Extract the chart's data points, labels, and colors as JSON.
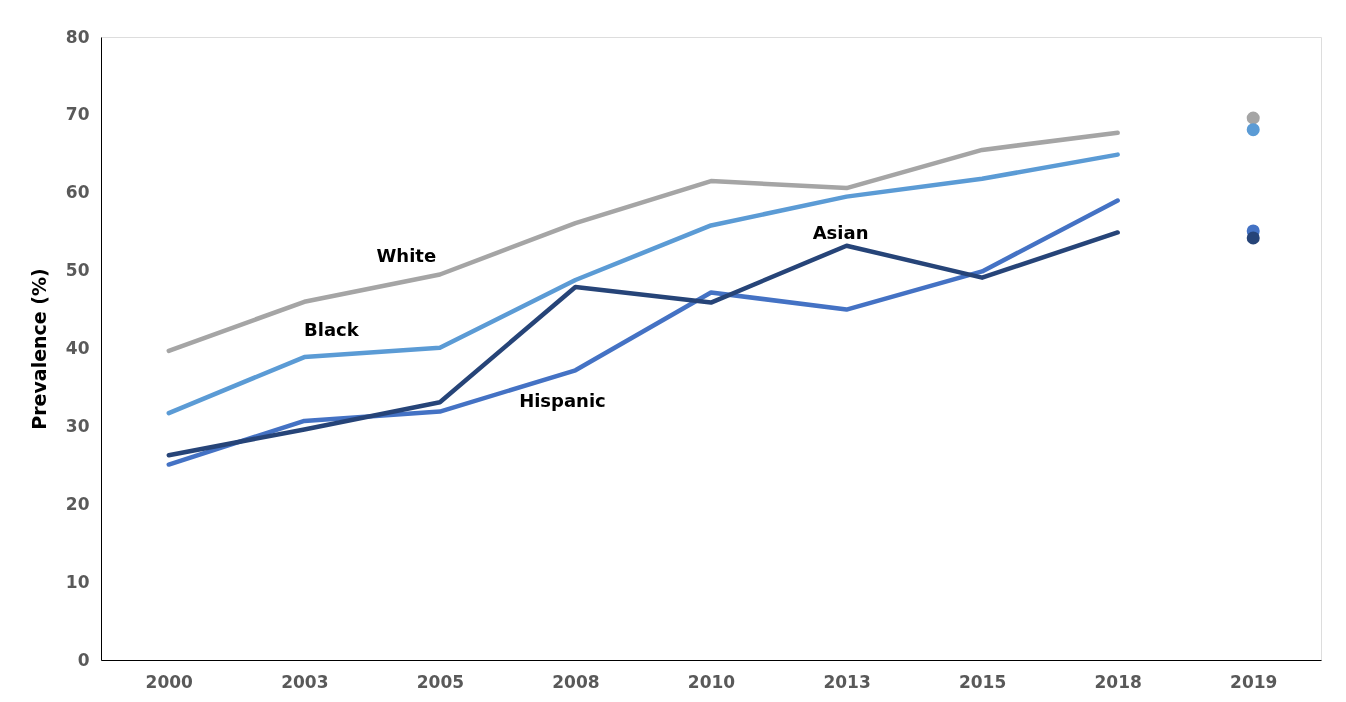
{
  "chart_data": {
    "type": "line",
    "ylabel": "Prevalence (%)",
    "categories": [
      "2000",
      "2003",
      "2005",
      "2008",
      "2010",
      "2013",
      "2015",
      "2018",
      "2019"
    ],
    "ylim": [
      0,
      80
    ],
    "yticks": [
      0,
      10,
      20,
      30,
      40,
      50,
      60,
      70,
      80
    ],
    "grid": false,
    "legend": false,
    "line_style": "solid",
    "series": [
      {
        "name": "White",
        "color": "#a5a5a5",
        "values": [
          39.7,
          46.0,
          49.5,
          56.1,
          61.5,
          60.6,
          65.5,
          67.7,
          null
        ]
      },
      {
        "name": "Black",
        "color": "#5b9bd5",
        "values": [
          31.7,
          38.9,
          40.1,
          48.8,
          55.8,
          59.5,
          61.8,
          64.9,
          null
        ]
      },
      {
        "name": "Hispanic",
        "color": "#4472c4",
        "values": [
          25.1,
          30.7,
          31.9,
          37.2,
          47.2,
          45.0,
          49.9,
          59.0,
          null
        ]
      },
      {
        "name": "Asian",
        "color": "#264478",
        "values": [
          26.3,
          29.6,
          33.1,
          47.9,
          45.9,
          53.2,
          49.1,
          54.9,
          null
        ]
      },
      {
        "type": "scatter",
        "color": "#a5a5a5",
        "values": [
          null,
          null,
          null,
          null,
          null,
          null,
          null,
          null,
          69.6
        ]
      },
      {
        "type": "scatter",
        "color": "#5b9bd5",
        "values": [
          null,
          null,
          null,
          null,
          null,
          null,
          null,
          null,
          68.1
        ]
      },
      {
        "type": "scatter",
        "color": "#4472c4",
        "values": [
          null,
          null,
          null,
          null,
          null,
          null,
          null,
          null,
          55.1
        ]
      },
      {
        "type": "scatter",
        "color": "#264478",
        "values": [
          null,
          null,
          null,
          null,
          null,
          null,
          null,
          null,
          54.2
        ]
      }
    ]
  }
}
